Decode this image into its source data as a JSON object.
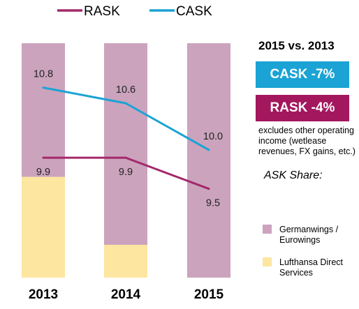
{
  "legend": [
    {
      "name": "RASK",
      "color": "#A3296A"
    },
    {
      "name": "CASK",
      "color": "#1AA3D4"
    }
  ],
  "comparison": {
    "title": "2015 vs. 2013",
    "cask_label": "CASK -7%",
    "cask_color": "#1AA3D4",
    "rask_label": "RASK -4%",
    "rask_color": "#A3175E",
    "note": "excludes other operating income (wetlease revenues, FX gains, etc.)"
  },
  "ask_share": {
    "title": "ASK Share:",
    "items": [
      {
        "label": "Germanwings / Eurowings",
        "color": "#CBA3BD"
      },
      {
        "label": "Lufthansa Direct Services",
        "color": "#FCE6A0"
      }
    ]
  },
  "chart_data": {
    "type": "bar",
    "categories": [
      "2013",
      "2014",
      "2015"
    ],
    "bar_series": [
      {
        "name": "Lufthansa Direct Services",
        "values": [
          0.43,
          0.14,
          0.0
        ],
        "color": "#FCE6A0"
      },
      {
        "name": "Germanwings / Eurowings",
        "values": [
          0.57,
          0.86,
          1.0
        ],
        "color": "#CBA3BD"
      }
    ],
    "line_series": [
      {
        "name": "CASK",
        "values": [
          10.8,
          10.6,
          10.0
        ],
        "color": "#1AA3D4"
      },
      {
        "name": "RASK",
        "values": [
          9.9,
          9.9,
          9.5
        ],
        "color": "#A3296A"
      }
    ],
    "line_ylim": [
      8.36,
      11.37
    ]
  }
}
